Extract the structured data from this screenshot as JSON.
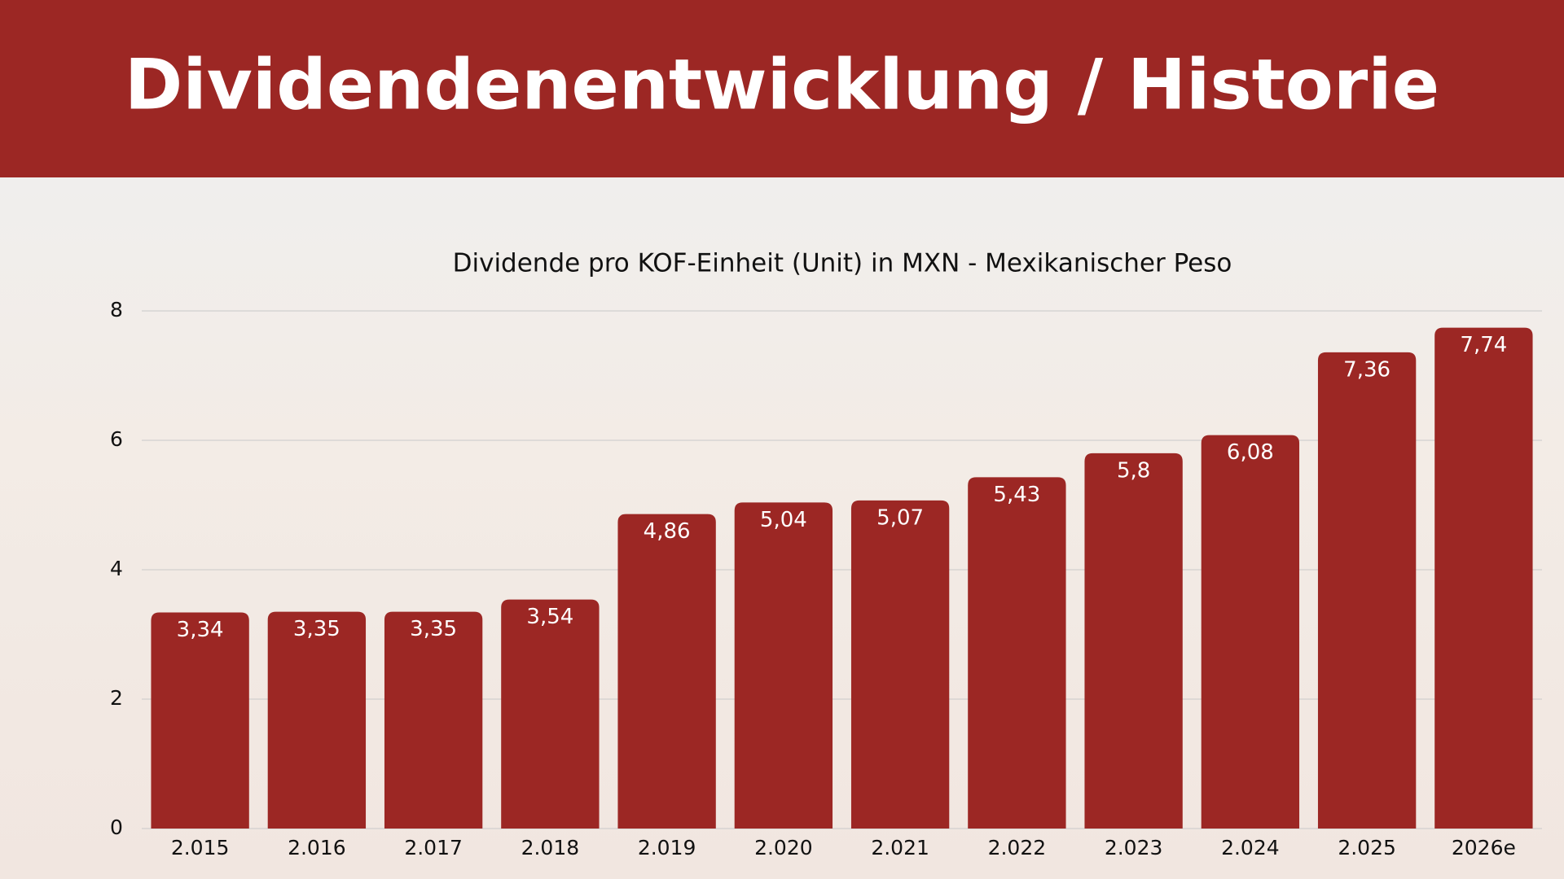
{
  "chart_data": {
    "type": "bar",
    "title": "Dividendenentwicklung / Historie",
    "subtitle": "Dividende pro KOF-Einheit (Unit) in MXN - Mexikanischer Peso",
    "categories": [
      "2.015",
      "2.016",
      "2.017",
      "2.018",
      "2.019",
      "2.020",
      "2.021",
      "2.022",
      "2.023",
      "2.024",
      "2.025",
      "2026e"
    ],
    "values": [
      3.34,
      3.35,
      3.35,
      3.54,
      4.86,
      5.04,
      5.07,
      5.43,
      5.8,
      6.08,
      7.36,
      7.74
    ],
    "value_labels": [
      "3,34",
      "3,35",
      "3,35",
      "3,54",
      "4,86",
      "5,04",
      "5,07",
      "5,43",
      "5,8",
      "6,08",
      "7,36",
      "7,74"
    ],
    "color": "#9c2724",
    "ylim": [
      0,
      8
    ],
    "yticks": [
      0,
      2,
      4,
      6,
      8
    ],
    "grid": true
  }
}
